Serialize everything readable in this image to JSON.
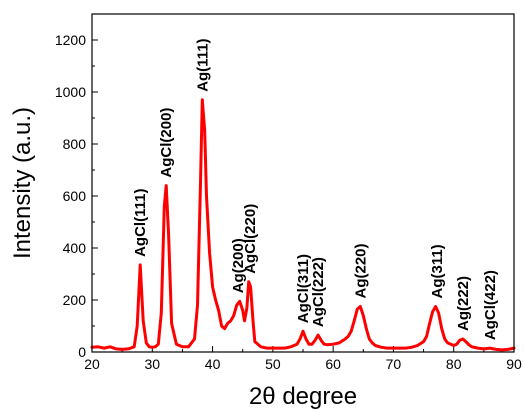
{
  "chart_data": {
    "type": "line",
    "title": "",
    "xlabel": "2θ degree",
    "ylabel": "Intensity (a.u.)",
    "xlim": [
      20,
      90
    ],
    "ylim": [
      0,
      1300
    ],
    "x_ticks": [
      "20",
      "30",
      "40",
      "50",
      "60",
      "70",
      "80",
      "90"
    ],
    "y_ticks": [
      "0",
      "200",
      "400",
      "600",
      "800",
      "1000",
      "1200"
    ],
    "grid": false,
    "legend": "none",
    "line_color": "#ff0000",
    "series": [
      {
        "x": [
          20,
          21,
          22,
          23,
          24,
          25,
          26,
          27,
          27.5,
          28,
          28.5,
          29,
          29.5,
          30,
          30.5,
          31,
          31.5,
          32,
          32.3,
          32.7,
          33.2,
          34,
          35,
          36,
          37,
          37.5,
          38,
          38.3,
          38.7,
          39,
          39.5,
          40,
          40.5,
          41,
          41.5,
          42,
          42.5,
          43,
          43.5,
          44,
          44.5,
          45,
          45.3,
          45.7,
          46,
          46.3,
          46.7,
          47,
          48,
          49,
          50,
          51,
          52,
          53,
          54,
          54.5,
          55,
          55.5,
          56,
          56.5,
          57,
          57.5,
          58,
          58.5,
          59,
          60,
          61,
          62,
          62.5,
          63,
          63.5,
          64,
          64.5,
          65,
          65.5,
          66,
          66.5,
          67,
          68,
          69,
          70,
          71,
          72,
          73,
          74,
          75,
          75.5,
          76,
          76.5,
          77,
          77.5,
          78,
          78.5,
          79,
          80,
          80.5,
          81,
          81.5,
          82,
          82.5,
          83,
          84,
          85,
          86,
          87,
          88,
          89,
          90
        ],
        "y": [
          18,
          20,
          15,
          20,
          12,
          10,
          12,
          20,
          100,
          335,
          120,
          35,
          20,
          18,
          20,
          30,
          150,
          560,
          640,
          450,
          110,
          30,
          20,
          20,
          50,
          180,
          650,
          970,
          850,
          600,
          380,
          250,
          200,
          160,
          100,
          90,
          110,
          120,
          140,
          180,
          195,
          160,
          120,
          170,
          270,
          250,
          120,
          40,
          20,
          15,
          15,
          15,
          15,
          20,
          30,
          50,
          80,
          50,
          30,
          30,
          45,
          65,
          45,
          30,
          28,
          30,
          35,
          50,
          60,
          80,
          120,
          165,
          175,
          140,
          90,
          50,
          35,
          25,
          18,
          15,
          15,
          15,
          15,
          18,
          25,
          40,
          60,
          110,
          155,
          175,
          150,
          90,
          50,
          35,
          25,
          30,
          45,
          50,
          40,
          28,
          20,
          15,
          12,
          15,
          10,
          8,
          10,
          15
        ]
      }
    ],
    "annotations": [
      {
        "text": "AgCl(111)",
        "x": 28,
        "y": 335
      },
      {
        "text": "AgCl(200)",
        "x": 32.3,
        "y": 640
      },
      {
        "text": "Ag(111)",
        "x": 38.3,
        "y": 970
      },
      {
        "text": "Ag(200)",
        "x": 44.2,
        "y": 195
      },
      {
        "text": "AgCl(220)",
        "x": 46.2,
        "y": 270
      },
      {
        "text": "AgCl(311)",
        "x": 55,
        "y": 80
      },
      {
        "text": "AgCl(222)",
        "x": 57.5,
        "y": 65
      },
      {
        "text": "Ag(220)",
        "x": 64.5,
        "y": 175
      },
      {
        "text": "Ag(311)",
        "x": 77.2,
        "y": 175
      },
      {
        "text": "Ag(222)",
        "x": 81.5,
        "y": 50
      },
      {
        "text": "AgCl(422)",
        "x": 86,
        "y": 15
      }
    ]
  }
}
